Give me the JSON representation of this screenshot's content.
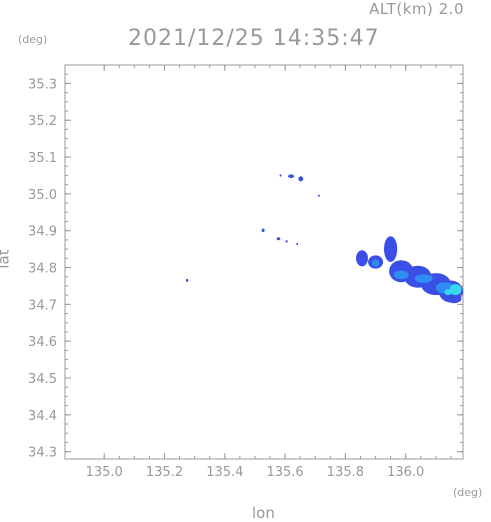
{
  "header": {
    "alt_label": "ALT(km) 2.0",
    "timestamp": "2021/12/25 14:35:47"
  },
  "chart_data": {
    "type": "heatmap",
    "title": "2021/12/25 14:35:47",
    "xlabel": "lon",
    "ylabel": "lat",
    "x_unit": "(deg)",
    "y_unit": "(deg)",
    "xlim": [
      134.87,
      136.19
    ],
    "ylim": [
      34.28,
      35.35
    ],
    "x_ticks": [
      135.0,
      135.2,
      135.4,
      135.6,
      135.8,
      136.0
    ],
    "x_tick_labels": [
      "135.0",
      "135.2",
      "135.4",
      "135.6",
      "135.8",
      "136.0"
    ],
    "y_ticks": [
      34.3,
      34.4,
      34.5,
      34.6,
      34.7,
      34.8,
      34.9,
      35.0,
      35.1,
      35.2,
      35.3
    ],
    "y_tick_labels": [
      "34.3",
      "34.4",
      "34.5",
      "34.6",
      "34.7",
      "34.8",
      "34.9",
      "35.0",
      "35.1",
      "35.2",
      "35.3"
    ],
    "grid": false,
    "colors": {
      "low": "#3a4fe6",
      "mid": "#2f8cf0",
      "high": "#38d8f0",
      "axis": "#999999"
    },
    "echoes": [
      {
        "lon": 135.275,
        "lat": 34.765,
        "rx": 0.004,
        "ry": 0.004,
        "level": "low"
      },
      {
        "lon": 135.527,
        "lat": 34.901,
        "rx": 0.005,
        "ry": 0.005,
        "level": "low"
      },
      {
        "lon": 135.578,
        "lat": 34.878,
        "rx": 0.006,
        "ry": 0.004,
        "level": "low"
      },
      {
        "lon": 135.605,
        "lat": 34.871,
        "rx": 0.004,
        "ry": 0.003,
        "level": "low"
      },
      {
        "lon": 135.64,
        "lat": 34.864,
        "rx": 0.002,
        "ry": 0.002,
        "level": "low"
      },
      {
        "lon": 135.62,
        "lat": 35.048,
        "rx": 0.01,
        "ry": 0.005,
        "level": "low"
      },
      {
        "lon": 135.652,
        "lat": 35.041,
        "rx": 0.008,
        "ry": 0.007,
        "level": "low"
      },
      {
        "lon": 135.585,
        "lat": 35.05,
        "rx": 0.003,
        "ry": 0.003,
        "level": "low"
      },
      {
        "lon": 135.712,
        "lat": 34.995,
        "rx": 0.003,
        "ry": 0.002,
        "level": "low"
      },
      {
        "lon": 135.855,
        "lat": 34.825,
        "rx": 0.02,
        "ry": 0.022,
        "level": "low"
      },
      {
        "lon": 135.9,
        "lat": 34.815,
        "rx": 0.025,
        "ry": 0.018,
        "level": "low"
      },
      {
        "lon": 135.95,
        "lat": 34.85,
        "rx": 0.022,
        "ry": 0.035,
        "level": "low"
      },
      {
        "lon": 135.985,
        "lat": 34.79,
        "rx": 0.04,
        "ry": 0.03,
        "level": "low"
      },
      {
        "lon": 136.04,
        "lat": 34.775,
        "rx": 0.045,
        "ry": 0.03,
        "level": "low"
      },
      {
        "lon": 136.1,
        "lat": 34.755,
        "rx": 0.05,
        "ry": 0.03,
        "level": "low"
      },
      {
        "lon": 136.15,
        "lat": 34.735,
        "rx": 0.04,
        "ry": 0.03,
        "level": "low"
      },
      {
        "lon": 136.16,
        "lat": 34.715,
        "rx": 0.025,
        "ry": 0.012,
        "level": "low"
      },
      {
        "lon": 135.9,
        "lat": 34.812,
        "rx": 0.012,
        "ry": 0.01,
        "level": "mid"
      },
      {
        "lon": 135.985,
        "lat": 34.78,
        "rx": 0.025,
        "ry": 0.012,
        "level": "mid"
      },
      {
        "lon": 136.06,
        "lat": 34.77,
        "rx": 0.03,
        "ry": 0.012,
        "level": "mid"
      },
      {
        "lon": 136.13,
        "lat": 34.745,
        "rx": 0.03,
        "ry": 0.015,
        "level": "mid"
      },
      {
        "lon": 136.165,
        "lat": 34.74,
        "rx": 0.02,
        "ry": 0.015,
        "level": "high"
      },
      {
        "lon": 136.14,
        "lat": 34.733,
        "rx": 0.012,
        "ry": 0.008,
        "level": "high"
      }
    ]
  }
}
